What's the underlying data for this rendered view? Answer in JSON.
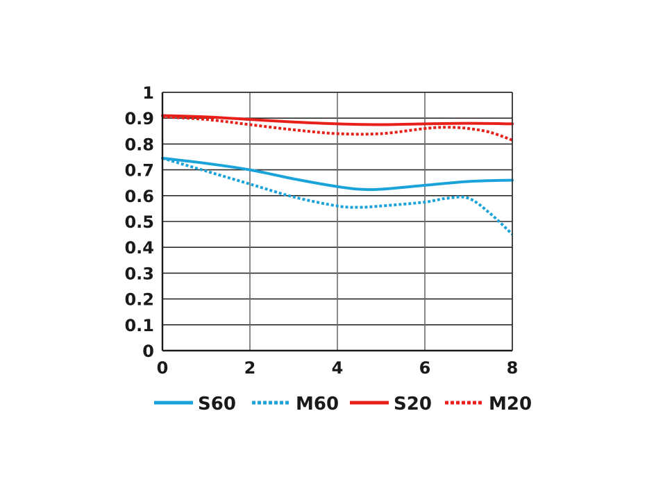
{
  "chart_data": {
    "type": "line",
    "title": "",
    "xlabel": "",
    "ylabel": "",
    "xlim": [
      0,
      8
    ],
    "ylim": [
      0,
      1
    ],
    "x_ticks": [
      "0",
      "2",
      "4",
      "6",
      "8"
    ],
    "y_ticks": [
      "0",
      "0.1",
      "0.2",
      "0.3",
      "0.4",
      "0.5",
      "0.6",
      "0.7",
      "0.8",
      "0.9",
      "1"
    ],
    "grid": true,
    "legend_position": "bottom",
    "series": [
      {
        "name": "S60",
        "color": "#1aa3d9",
        "style": "solid",
        "x": [
          0,
          1,
          2,
          3,
          4,
          4.5,
          5,
          6,
          7,
          8
        ],
        "y": [
          0.745,
          0.725,
          0.7,
          0.665,
          0.635,
          0.625,
          0.625,
          0.64,
          0.655,
          0.66
        ]
      },
      {
        "name": "M60",
        "color": "#1aa3d9",
        "style": "dotted",
        "x": [
          0,
          1,
          2,
          3,
          4,
          4.5,
          5,
          6,
          6.5,
          7,
          7.5,
          8
        ],
        "y": [
          0.745,
          0.695,
          0.645,
          0.595,
          0.56,
          0.555,
          0.56,
          0.575,
          0.59,
          0.59,
          0.53,
          0.45
        ]
      },
      {
        "name": "S20",
        "color": "#e8201a",
        "style": "solid",
        "x": [
          0,
          1,
          2,
          3,
          4,
          5,
          6,
          7,
          8
        ],
        "y": [
          0.91,
          0.905,
          0.895,
          0.885,
          0.878,
          0.875,
          0.878,
          0.88,
          0.878
        ]
      },
      {
        "name": "M20",
        "color": "#e8201a",
        "style": "dotted",
        "x": [
          0,
          1,
          2,
          3,
          4,
          5,
          6,
          6.5,
          7,
          7.5,
          8
        ],
        "y": [
          0.905,
          0.895,
          0.875,
          0.855,
          0.84,
          0.84,
          0.86,
          0.865,
          0.86,
          0.845,
          0.815
        ]
      }
    ]
  }
}
